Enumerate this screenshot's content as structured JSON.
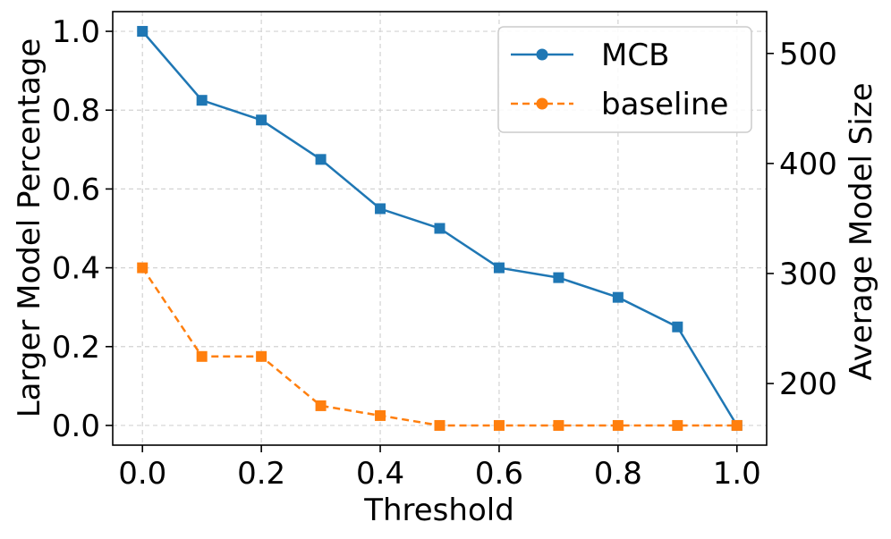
{
  "chart_data": {
    "type": "line",
    "title": "",
    "xlabel": "Threshold",
    "ylabel": "Larger Model Percentage",
    "y2label": "Average Model Size",
    "xlim": [
      -0.05,
      1.05
    ],
    "ylim": [
      -0.05,
      1.05
    ],
    "y2lim": [
      144,
      538
    ],
    "xticks": [
      0.0,
      0.2,
      0.4,
      0.6,
      0.8,
      1.0
    ],
    "xtick_labels": [
      "0.0",
      "0.2",
      "0.4",
      "0.6",
      "0.8",
      "1.0"
    ],
    "yticks": [
      0.0,
      0.2,
      0.4,
      0.6,
      0.8,
      1.0
    ],
    "ytick_labels": [
      "0.0",
      "0.2",
      "0.4",
      "0.6",
      "0.8",
      "1.0"
    ],
    "y2ticks": [
      200,
      300,
      400,
      500
    ],
    "y2tick_labels": [
      "200",
      "300",
      "400",
      "500"
    ],
    "grid": true,
    "legend_position": "top-right",
    "x": [
      0.0,
      0.1,
      0.2,
      0.3,
      0.4,
      0.5,
      0.6,
      0.7,
      0.8,
      0.9,
      1.0
    ],
    "series": [
      {
        "name": "MCB",
        "color": "#1f77b4",
        "line_style": "solid",
        "values": [
          1.0,
          0.825,
          0.775,
          0.675,
          0.55,
          0.5,
          0.4,
          0.375,
          0.325,
          0.25,
          0.0
        ]
      },
      {
        "name": "baseline",
        "color": "#ff7f0e",
        "line_style": "dashed",
        "values": [
          0.4,
          0.175,
          0.175,
          0.05,
          0.025,
          0.0,
          0.0,
          0.0,
          0.0,
          0.0,
          0.0
        ]
      }
    ]
  }
}
